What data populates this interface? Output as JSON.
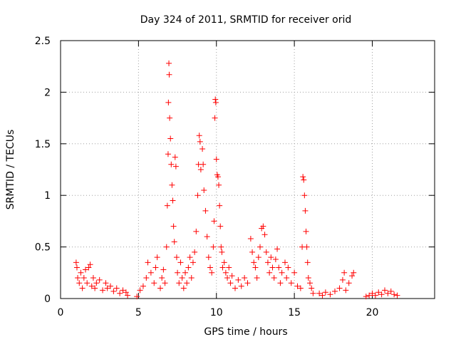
{
  "chart_data": {
    "type": "scatter",
    "title": "Day 324 of 2011, SRMTID for receiver orid",
    "xlabel": "GPS time / hours",
    "ylabel": "SRMTID / TECUs",
    "xlim": [
      0,
      24
    ],
    "ylim": [
      0,
      2.5
    ],
    "x_ticks": [
      0,
      5,
      10,
      15,
      20
    ],
    "x_tick_labels": [
      "0",
      "5",
      "10",
      "15",
      "20"
    ],
    "y_ticks": [
      0,
      0.5,
      1,
      1.5,
      2,
      2.5
    ],
    "y_tick_labels": [
      "0",
      "0.5",
      "1",
      "1.5",
      "2",
      "2.5"
    ],
    "grid": true,
    "marker": "+",
    "color": "#ff0000",
    "series": [
      {
        "name": "SRMTID",
        "points": [
          [
            1.0,
            0.35
          ],
          [
            1.05,
            0.3
          ],
          [
            1.1,
            0.2
          ],
          [
            1.2,
            0.15
          ],
          [
            1.3,
            0.25
          ],
          [
            1.4,
            0.1
          ],
          [
            1.5,
            0.2
          ],
          [
            1.6,
            0.28
          ],
          [
            1.7,
            0.15
          ],
          [
            1.8,
            0.3
          ],
          [
            1.9,
            0.33
          ],
          [
            2.0,
            0.12
          ],
          [
            2.1,
            0.2
          ],
          [
            2.2,
            0.1
          ],
          [
            2.3,
            0.15
          ],
          [
            2.5,
            0.18
          ],
          [
            2.7,
            0.08
          ],
          [
            2.9,
            0.15
          ],
          [
            3.0,
            0.1
          ],
          [
            3.2,
            0.12
          ],
          [
            3.4,
            0.07
          ],
          [
            3.6,
            0.1
          ],
          [
            3.8,
            0.05
          ],
          [
            4.0,
            0.08
          ],
          [
            4.2,
            0.06
          ],
          [
            4.3,
            0.03
          ],
          [
            4.9,
            0.02
          ],
          [
            5.1,
            0.08
          ],
          [
            5.3,
            0.12
          ],
          [
            5.5,
            0.2
          ],
          [
            5.6,
            0.35
          ],
          [
            5.8,
            0.25
          ],
          [
            6.0,
            0.15
          ],
          [
            6.1,
            0.3
          ],
          [
            6.2,
            0.4
          ],
          [
            6.4,
            0.1
          ],
          [
            6.5,
            0.2
          ],
          [
            6.6,
            0.28
          ],
          [
            6.7,
            0.15
          ],
          [
            6.8,
            0.5
          ],
          [
            6.85,
            0.9
          ],
          [
            6.9,
            1.4
          ],
          [
            6.92,
            1.9
          ],
          [
            6.95,
            2.28
          ],
          [
            6.97,
            2.17
          ],
          [
            7.0,
            1.75
          ],
          [
            7.05,
            1.55
          ],
          [
            7.1,
            1.3
          ],
          [
            7.15,
            1.1
          ],
          [
            7.2,
            0.95
          ],
          [
            7.25,
            0.7
          ],
          [
            7.3,
            0.55
          ],
          [
            7.35,
            1.37
          ],
          [
            7.4,
            1.28
          ],
          [
            7.45,
            0.4
          ],
          [
            7.5,
            0.25
          ],
          [
            7.6,
            0.15
          ],
          [
            7.7,
            0.35
          ],
          [
            7.8,
            0.2
          ],
          [
            7.9,
            0.1
          ],
          [
            8.0,
            0.25
          ],
          [
            8.1,
            0.15
          ],
          [
            8.2,
            0.3
          ],
          [
            8.3,
            0.4
          ],
          [
            8.4,
            0.2
          ],
          [
            8.5,
            0.35
          ],
          [
            8.6,
            0.45
          ],
          [
            8.7,
            0.65
          ],
          [
            8.8,
            1.0
          ],
          [
            8.85,
            1.3
          ],
          [
            8.9,
            1.58
          ],
          [
            8.95,
            1.52
          ],
          [
            9.0,
            1.25
          ],
          [
            9.1,
            1.45
          ],
          [
            9.15,
            1.3
          ],
          [
            9.2,
            1.05
          ],
          [
            9.3,
            0.85
          ],
          [
            9.4,
            0.6
          ],
          [
            9.5,
            0.4
          ],
          [
            9.6,
            0.3
          ],
          [
            9.7,
            0.25
          ],
          [
            9.8,
            0.5
          ],
          [
            9.85,
            0.75
          ],
          [
            9.9,
            1.75
          ],
          [
            9.93,
            1.93
          ],
          [
            9.96,
            1.9
          ],
          [
            10.0,
            1.35
          ],
          [
            10.05,
            1.2
          ],
          [
            10.1,
            1.18
          ],
          [
            10.15,
            1.1
          ],
          [
            10.2,
            0.9
          ],
          [
            10.25,
            0.7
          ],
          [
            10.3,
            0.5
          ],
          [
            10.35,
            0.45
          ],
          [
            10.4,
            0.3
          ],
          [
            10.5,
            0.35
          ],
          [
            10.6,
            0.25
          ],
          [
            10.7,
            0.2
          ],
          [
            10.8,
            0.3
          ],
          [
            10.9,
            0.15
          ],
          [
            11.0,
            0.22
          ],
          [
            11.2,
            0.1
          ],
          [
            11.4,
            0.18
          ],
          [
            11.6,
            0.12
          ],
          [
            11.8,
            0.2
          ],
          [
            12.0,
            0.15
          ],
          [
            12.2,
            0.58
          ],
          [
            12.3,
            0.45
          ],
          [
            12.4,
            0.35
          ],
          [
            12.5,
            0.3
          ],
          [
            12.6,
            0.2
          ],
          [
            12.7,
            0.4
          ],
          [
            12.8,
            0.5
          ],
          [
            12.9,
            0.68
          ],
          [
            13.0,
            0.7
          ],
          [
            13.1,
            0.62
          ],
          [
            13.2,
            0.45
          ],
          [
            13.3,
            0.35
          ],
          [
            13.4,
            0.25
          ],
          [
            13.5,
            0.4
          ],
          [
            13.6,
            0.3
          ],
          [
            13.7,
            0.2
          ],
          [
            13.8,
            0.38
          ],
          [
            13.9,
            0.48
          ],
          [
            14.0,
            0.3
          ],
          [
            14.1,
            0.15
          ],
          [
            14.2,
            0.25
          ],
          [
            14.4,
            0.35
          ],
          [
            14.5,
            0.2
          ],
          [
            14.6,
            0.3
          ],
          [
            14.8,
            0.15
          ],
          [
            15.0,
            0.25
          ],
          [
            15.2,
            0.12
          ],
          [
            15.4,
            0.1
          ],
          [
            15.5,
            0.5
          ],
          [
            15.55,
            1.18
          ],
          [
            15.6,
            1.15
          ],
          [
            15.65,
            1.0
          ],
          [
            15.7,
            0.85
          ],
          [
            15.75,
            0.65
          ],
          [
            15.8,
            0.5
          ],
          [
            15.85,
            0.35
          ],
          [
            15.9,
            0.2
          ],
          [
            16.0,
            0.15
          ],
          [
            16.1,
            0.1
          ],
          [
            16.2,
            0.05
          ],
          [
            16.6,
            0.05
          ],
          [
            16.8,
            0.03
          ],
          [
            17.0,
            0.06
          ],
          [
            17.3,
            0.04
          ],
          [
            17.6,
            0.07
          ],
          [
            17.9,
            0.1
          ],
          [
            18.1,
            0.18
          ],
          [
            18.2,
            0.25
          ],
          [
            18.3,
            0.08
          ],
          [
            18.5,
            0.15
          ],
          [
            18.7,
            0.22
          ],
          [
            18.8,
            0.25
          ],
          [
            19.6,
            0.02
          ],
          [
            19.8,
            0.03
          ],
          [
            20.0,
            0.05
          ],
          [
            20.2,
            0.03
          ],
          [
            20.4,
            0.06
          ],
          [
            20.6,
            0.04
          ],
          [
            20.8,
            0.08
          ],
          [
            21.0,
            0.05
          ],
          [
            21.2,
            0.07
          ],
          [
            21.4,
            0.04
          ],
          [
            21.6,
            0.03
          ]
        ]
      }
    ]
  }
}
